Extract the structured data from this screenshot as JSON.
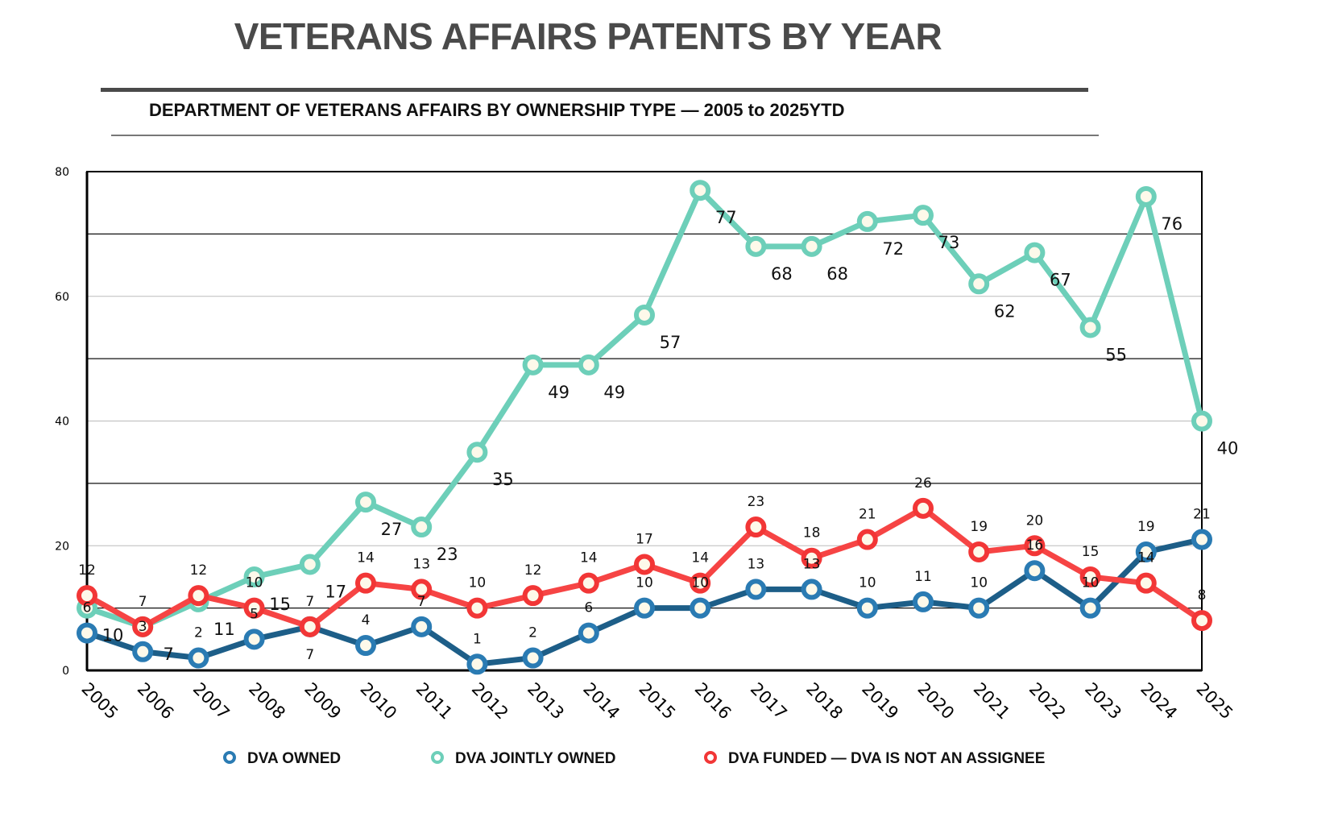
{
  "chart_data": {
    "type": "line",
    "title": "VETERANS AFFAIRS PATENTS BY YEAR",
    "subtitle": "DEPARTMENT OF VETERANS AFFAIRS BY OWNERSHIP TYPE — 2005 to 2025YTD",
    "xlabel": "",
    "ylabel": "",
    "ylim": [
      0,
      80
    ],
    "yticks": [
      0,
      20,
      40,
      60,
      80
    ],
    "grid": true,
    "legend": "bottom",
    "categories": [
      "2005",
      "2006",
      "2007",
      "2008",
      "2009",
      "2010",
      "2011",
      "2012",
      "2013",
      "2014",
      "2015",
      "2016",
      "2017",
      "2018",
      "2019",
      "2020",
      "2021",
      "2022",
      "2023",
      "2024",
      "2025"
    ],
    "series": [
      {
        "name": "DVA  OWNED",
        "color": "#1d5e88",
        "marker": "#2a7bb3",
        "labelPos": "above",
        "values": [
          6,
          3,
          2,
          5,
          7,
          4,
          7,
          1,
          2,
          6,
          10,
          10,
          13,
          13,
          10,
          11,
          10,
          16,
          10,
          19,
          21
        ]
      },
      {
        "name": "DVA JOINTLY OWNED",
        "color": "#6dcfb9",
        "marker": "#6dcfb9",
        "labelPos": "below-right",
        "values": [
          10,
          7,
          11,
          15,
          17,
          27,
          23,
          35,
          49,
          49,
          57,
          77,
          68,
          68,
          72,
          73,
          62,
          67,
          55,
          76,
          40
        ]
      },
      {
        "name": "DVA FUNDED — DVA  IS NOT AN  ASSIGNEE",
        "color": "#f64444",
        "marker": "#f23636",
        "labelPos": "above",
        "values": [
          12,
          7,
          12,
          10,
          7,
          14,
          13,
          10,
          12,
          14,
          17,
          14,
          23,
          18,
          21,
          26,
          19,
          20,
          15,
          14,
          8
        ]
      }
    ]
  }
}
